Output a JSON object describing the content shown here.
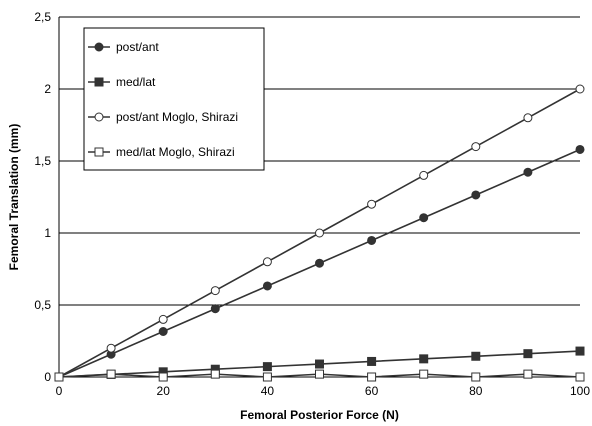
{
  "chart_data": {
    "type": "line",
    "title": "",
    "xlabel": "Femoral Posterior Force (N)",
    "ylabel": "Femoral Translation (mm)",
    "xlim": [
      0,
      100
    ],
    "ylim": [
      0,
      2.5
    ],
    "x_ticks": [
      "0",
      "20",
      "40",
      "60",
      "80",
      "100"
    ],
    "y_ticks": [
      "0",
      "0,5",
      "1",
      "1,5",
      "2",
      "2,5"
    ],
    "x_tick_values": [
      0,
      20,
      40,
      60,
      80,
      100
    ],
    "y_tick_values": [
      0,
      0.5,
      1,
      1.5,
      2,
      2.5
    ],
    "grid": "horizontal",
    "legend_position": "top-left",
    "x": [
      0,
      10,
      20,
      30,
      40,
      50,
      60,
      70,
      80,
      90,
      100
    ],
    "series": [
      {
        "name": "post/ant",
        "marker": "filled-circle",
        "color": "#333333",
        "values": [
          0,
          0.158,
          0.316,
          0.474,
          0.632,
          0.79,
          0.948,
          1.106,
          1.264,
          1.422,
          1.58
        ]
      },
      {
        "name": "med/lat",
        "marker": "filled-square",
        "color": "#333333",
        "values": [
          0,
          0.018,
          0.036,
          0.054,
          0.072,
          0.09,
          0.108,
          0.126,
          0.144,
          0.162,
          0.18
        ]
      },
      {
        "name": "post/ant Moglo, Shirazi",
        "marker": "open-circle",
        "color": "#333333",
        "values": [
          0,
          0.2,
          0.4,
          0.6,
          0.8,
          1.0,
          1.2,
          1.4,
          1.6,
          1.8,
          2.0
        ]
      },
      {
        "name": "med/lat Moglo, Shirazi",
        "marker": "open-square",
        "color": "#333333",
        "values": [
          0,
          0.02,
          0.0,
          0.02,
          0.0,
          0.02,
          0.0,
          0.02,
          0.0,
          0.02,
          0.0
        ]
      }
    ]
  }
}
